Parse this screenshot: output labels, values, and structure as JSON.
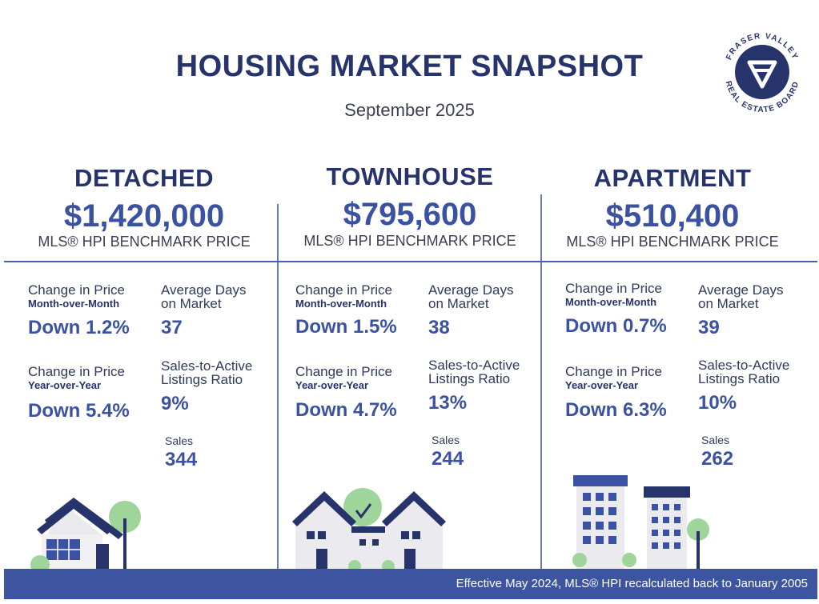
{
  "header": {
    "title": "HOUSING MARKET SNAPSHOT",
    "subtitle": "September 2025",
    "logo_text": "FRASER VALLEY REAL ESTATE BOARD"
  },
  "labels": {
    "benchmark": "MLS® HPI BENCHMARK PRICE",
    "change_price": "Change in Price",
    "mom": "Month-over-Month",
    "yoy": "Year-over-Year",
    "avg_days_1": "Average Days",
    "avg_days_2": "on Market",
    "ratio_1": "Sales-to-Active",
    "ratio_2": "Listings Ratio",
    "sales": "Sales"
  },
  "columns": [
    {
      "name": "DETACHED",
      "price": "$1,420,000",
      "mom": "Down 1.2%",
      "yoy": "Down 5.4%",
      "days": "37",
      "ratio": "9%",
      "sales": "344"
    },
    {
      "name": "TOWNHOUSE",
      "price": "$795,600",
      "mom": "Down 1.5%",
      "yoy": "Down 4.7%",
      "days": "38",
      "ratio": "13%",
      "sales": "244"
    },
    {
      "name": "APARTMENT",
      "price": "$510,400",
      "mom": "Down 0.7%",
      "yoy": "Down 6.3%",
      "days": "39",
      "ratio": "10%",
      "sales": "262"
    }
  ],
  "footer": {
    "note": "Effective May 2024, MLS® HPI recalculated back to January 2005"
  },
  "colors": {
    "navy": "#27336b",
    "accent_blue": "#3b52a3",
    "footer_bg": "#3d55a0",
    "green": "#9fd49a"
  }
}
